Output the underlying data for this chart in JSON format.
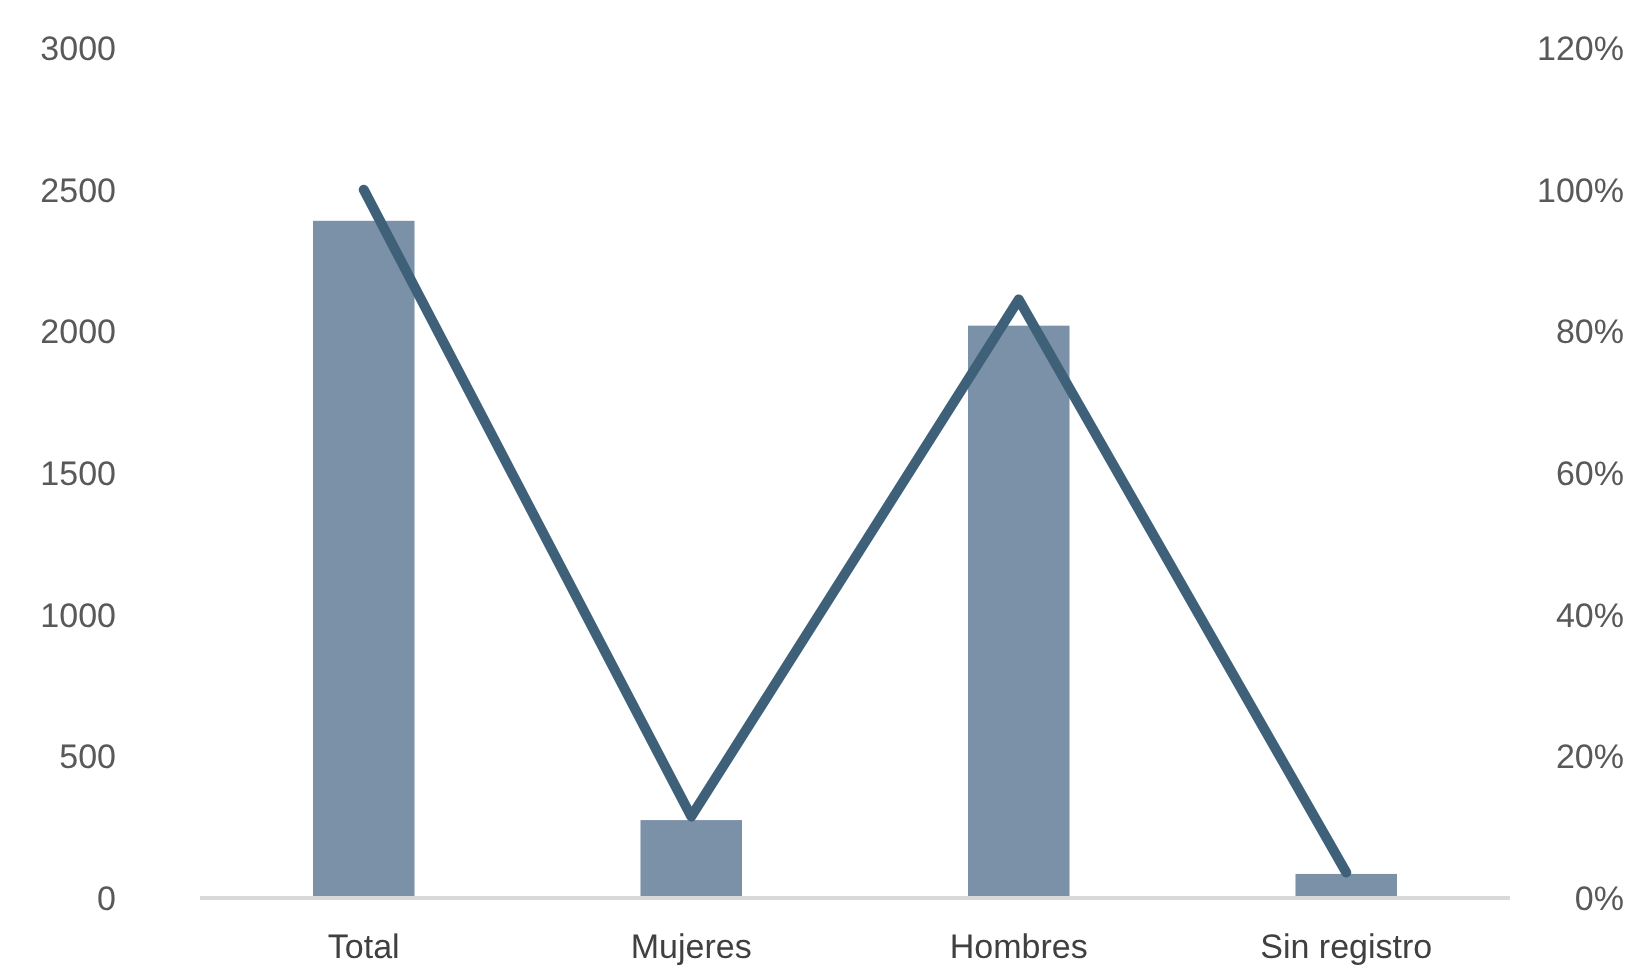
{
  "chart_data": {
    "type": "bar",
    "categories": [
      "Total",
      "Mujeres",
      "Hombres",
      "Sin registro"
    ],
    "series": [
      {
        "color": "#7a91a8",
        "values": [
          2390,
          275,
          2020,
          85
        ]
      },
      {
        "type": "line",
        "axis": "y2",
        "color": "#3e6079",
        "values": [
          100,
          11.5,
          84.5,
          3.6
        ]
      }
    ],
    "ylim": [
      0,
      3000
    ],
    "yticks": [
      0,
      500,
      1000,
      1500,
      2000,
      2500,
      3000
    ],
    "y2lim": [
      0,
      120
    ],
    "y2ticks": [
      {
        "value": 0,
        "label": "0%"
      },
      {
        "value": 20,
        "label": "20%"
      },
      {
        "value": 40,
        "label": "40%"
      },
      {
        "value": 60,
        "label": "60%"
      },
      {
        "value": 80,
        "label": "80%"
      },
      {
        "value": 100,
        "label": "100%"
      },
      {
        "value": 120,
        "label": "120%"
      }
    ],
    "grid": false,
    "marker": "none",
    "line_style": "solid"
  }
}
